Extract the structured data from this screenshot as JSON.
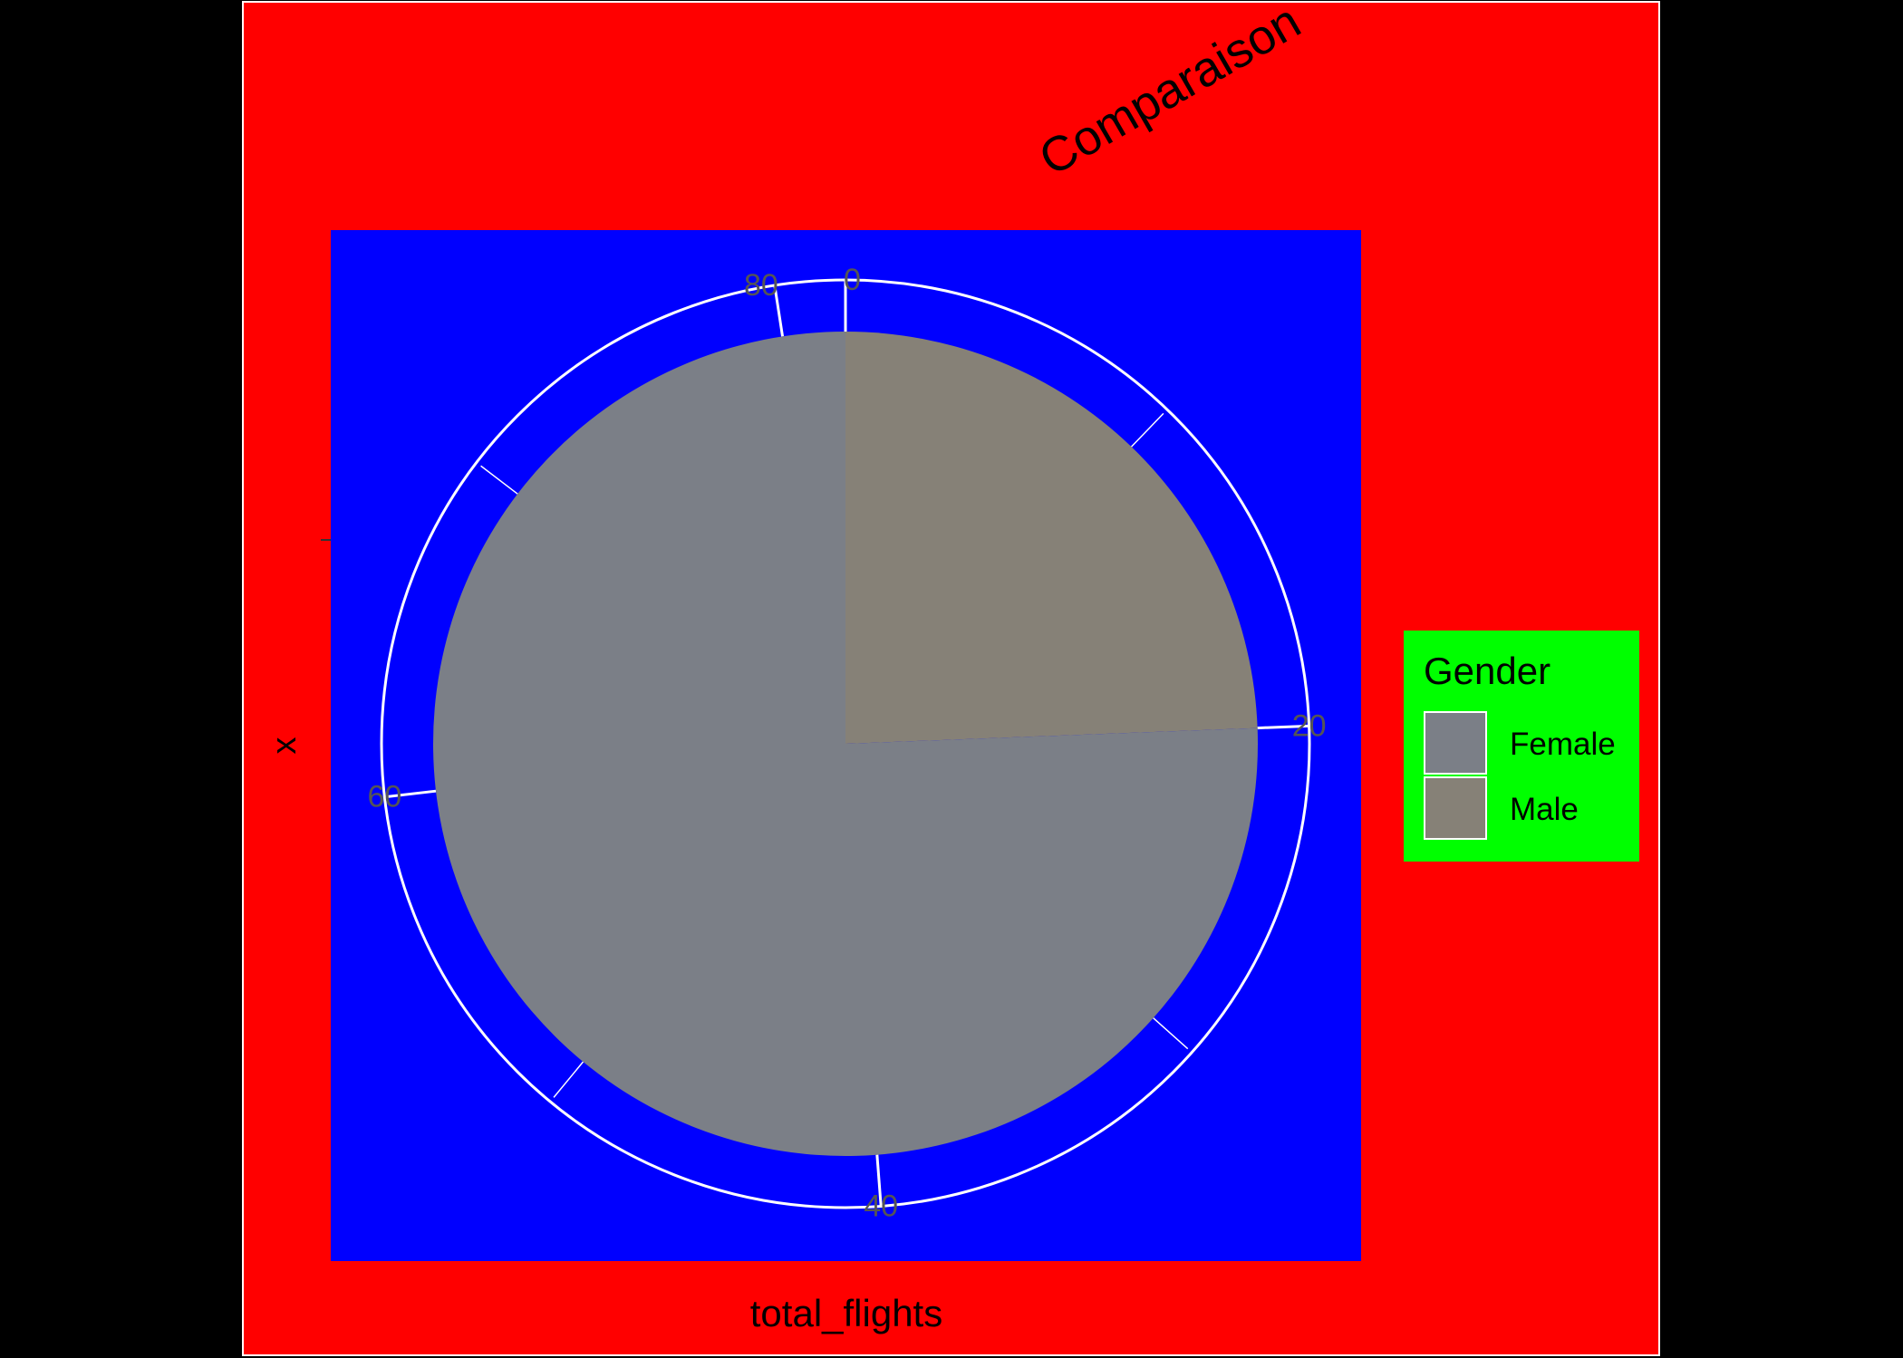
{
  "chart_data": {
    "type": "pie",
    "title": "Comparaison",
    "xlabel": "total_flights",
    "ylabel": "x",
    "slices": [
      {
        "label": "Male",
        "value": 20
      },
      {
        "label": "Female",
        "value": 62
      }
    ],
    "angular_axis": {
      "range": [
        0,
        82
      ],
      "tick_labels": [
        "0",
        "20",
        "40",
        "60",
        "80"
      ]
    },
    "legend": {
      "title": "Gender",
      "entries": [
        "Female",
        "Male"
      ],
      "placement": "right"
    },
    "colors": {
      "page_outer": "#000000",
      "plot_background": "#ff0000",
      "plot_border": "#ffffff",
      "panel_background": "#0000ff",
      "legend_background": "#00ff00",
      "grid": "#ffffff",
      "Female": "#7b7f87",
      "Male": "#868177",
      "tick_label": "#555555",
      "text": "#000000"
    }
  }
}
